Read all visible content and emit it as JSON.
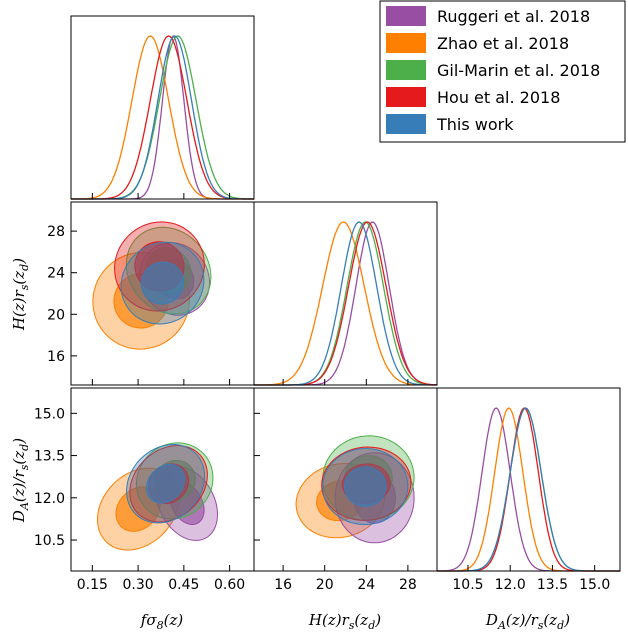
{
  "chart_data": {
    "type": "triangle",
    "legend": {
      "placement": "top-right",
      "entries": [
        {
          "label": "Ruggeri et al. 2018",
          "color": "#984ea3"
        },
        {
          "label": "Zhao et al. 2018",
          "color": "#ff7f00"
        },
        {
          "label": "Gil-Marin et al. 2018",
          "color": "#4daf4a"
        },
        {
          "label": "Hou et al. 2018",
          "color": "#e41a1c"
        },
        {
          "label": "This work",
          "color": "#377eb8"
        }
      ]
    },
    "parameters": [
      {
        "key": "fs8",
        "label": "fσ8(z)",
        "range": [
          0.08,
          0.68
        ],
        "ticks": [
          "0.15",
          "0.30",
          "0.45",
          "0.60"
        ],
        "tick_values": [
          0.15,
          0.3,
          0.45,
          0.6
        ]
      },
      {
        "key": "H",
        "label": "H(z)rs(zd)",
        "range": [
          13.2,
          30.8
        ],
        "ticks": [
          "16",
          "20",
          "24",
          "28"
        ],
        "tick_values": [
          16,
          20,
          24,
          28
        ]
      },
      {
        "key": "DA",
        "label": "DA(z)/rs(zd)",
        "range": [
          9.4,
          15.9
        ],
        "ticks": [
          "10.5",
          "12.0",
          "13.5",
          "15.0"
        ],
        "tick_values": [
          10.5,
          12.0,
          13.5,
          15.0
        ]
      }
    ],
    "y_labels": {
      "H": "H(z)rs(zd)",
      "DA": "DA(z)/rs(zd)"
    },
    "marginals": {
      "fs8": [
        {
          "name": "Ruggeri et al. 2018",
          "mean": 0.415,
          "sigma": 0.035
        },
        {
          "name": "Zhao et al. 2018",
          "mean": 0.34,
          "sigma": 0.06
        },
        {
          "name": "Gil-Marin et al. 2018",
          "mean": 0.43,
          "sigma": 0.06
        },
        {
          "name": "Hou et al. 2018",
          "mean": 0.4,
          "sigma": 0.06
        },
        {
          "name": "This work",
          "mean": 0.42,
          "sigma": 0.055
        }
      ],
      "H": [
        {
          "name": "Ruggeri et al. 2018",
          "mean": 24.6,
          "sigma": 1.6
        },
        {
          "name": "Zhao et al. 2018",
          "mean": 21.8,
          "sigma": 2.0
        },
        {
          "name": "Gil-Marin et al. 2018",
          "mean": 23.9,
          "sigma": 1.75
        },
        {
          "name": "Hou et al. 2018",
          "mean": 24.1,
          "sigma": 1.8
        },
        {
          "name": "This work",
          "mean": 23.3,
          "sigma": 1.7
        }
      ],
      "DA": [
        {
          "name": "Ruggeri et al. 2018",
          "mean": 11.5,
          "sigma": 0.5
        },
        {
          "name": "Zhao et al. 2018",
          "mean": 11.95,
          "sigma": 0.5
        },
        {
          "name": "Gil-Marin et al. 2018",
          "mean": 12.55,
          "sigma": 0.55
        },
        {
          "name": "Hou et al. 2018",
          "mean": 12.5,
          "sigma": 0.5
        },
        {
          "name": "This work",
          "mean": 12.55,
          "sigma": 0.55
        }
      ]
    },
    "contours": {
      "fs8_H": [
        {
          "name": "Zhao et al. 2018",
          "cx": 0.31,
          "cy": 21.3,
          "a1": 0.16,
          "b1": 4.6,
          "a2": 0.09,
          "b2": 2.6,
          "tilt": 0.8
        },
        {
          "name": "Ruggeri et al. 2018",
          "cx": 0.42,
          "cy": 23.4,
          "a1": 0.11,
          "b1": 3.6,
          "a2": 0.06,
          "b2": 2.0,
          "tilt": 0.6
        },
        {
          "name": "Gil-Marin et al. 2018",
          "cx": 0.4,
          "cy": 24.2,
          "a1": 0.13,
          "b1": 4.4,
          "a2": 0.07,
          "b2": 2.3,
          "tilt": 0.7
        },
        {
          "name": "Hou et al. 2018",
          "cx": 0.37,
          "cy": 24.6,
          "a1": 0.15,
          "b1": 4.2,
          "a2": 0.08,
          "b2": 2.4,
          "tilt": 0.7
        },
        {
          "name": "This work",
          "cx": 0.38,
          "cy": 23.0,
          "a1": 0.14,
          "b1": 3.8,
          "a2": 0.07,
          "b2": 2.0,
          "tilt": 0.7
        }
      ],
      "fs8_DA": [
        {
          "name": "Zhao et al. 2018",
          "cx": 0.3,
          "cy": 11.6,
          "a1": 0.15,
          "b1": 1.25,
          "a2": 0.08,
          "b2": 0.7,
          "tilt": 0.8
        },
        {
          "name": "Ruggeri et al. 2018",
          "cx": 0.46,
          "cy": 11.8,
          "a1": 0.09,
          "b1": 1.4,
          "a2": 0.05,
          "b2": 0.8,
          "tilt": 0.5
        },
        {
          "name": "Gil-Marin et al. 2018",
          "cx": 0.42,
          "cy": 12.6,
          "a1": 0.13,
          "b1": 1.3,
          "a2": 0.07,
          "b2": 0.7,
          "tilt": 0.75
        },
        {
          "name": "Hou et al. 2018",
          "cx": 0.4,
          "cy": 12.5,
          "a1": 0.14,
          "b1": 1.2,
          "a2": 0.07,
          "b2": 0.65,
          "tilt": 0.75
        },
        {
          "name": "This work",
          "cx": 0.39,
          "cy": 12.5,
          "a1": 0.14,
          "b1": 1.25,
          "a2": 0.07,
          "b2": 0.6,
          "tilt": 0.8
        }
      ],
      "H_DA": [
        {
          "name": "Zhao et al. 2018",
          "cx": 21.5,
          "cy": 11.9,
          "a1": 4.3,
          "b1": 1.3,
          "a2": 2.3,
          "b2": 0.7,
          "tilt": 0.25
        },
        {
          "name": "Ruggeri et al. 2018",
          "cx": 24.8,
          "cy": 12.0,
          "a1": 3.8,
          "b1": 1.6,
          "a2": 2.0,
          "b2": 0.9,
          "tilt": 0.0
        },
        {
          "name": "Gil-Marin et al. 2018",
          "cx": 24.2,
          "cy": 12.7,
          "a1": 4.4,
          "b1": 1.5,
          "a2": 2.3,
          "b2": 0.8,
          "tilt": 0.1
        },
        {
          "name": "Hou et al. 2018",
          "cx": 24.0,
          "cy": 12.5,
          "a1": 4.3,
          "b1": 1.3,
          "a2": 2.3,
          "b2": 0.7,
          "tilt": 0.1
        },
        {
          "name": "This work",
          "cx": 23.9,
          "cy": 12.4,
          "a1": 4.1,
          "b1": 1.35,
          "a2": 2.0,
          "b2": 0.7,
          "tilt": 0.05
        }
      ]
    }
  }
}
